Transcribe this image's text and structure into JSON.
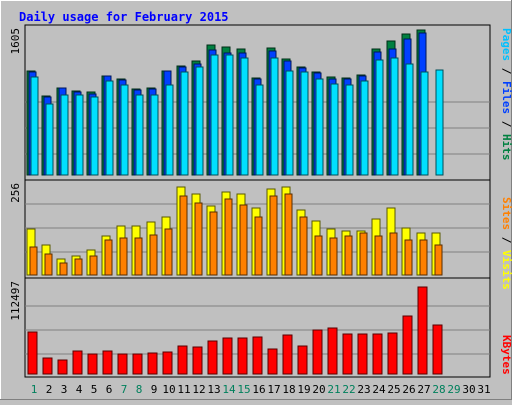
{
  "chart_data": [
    {
      "type": "bar",
      "title": "Daily usage for February 2015",
      "categories": [
        "1",
        "2",
        "3",
        "4",
        "5",
        "6",
        "7",
        "8",
        "9",
        "10",
        "11",
        "12",
        "13",
        "14",
        "15",
        "16",
        "17",
        "18",
        "19",
        "20",
        "21",
        "22",
        "23",
        "24",
        "25",
        "26",
        "27",
        "28",
        "29",
        "30",
        "31"
      ],
      "weekend_days": [
        "1",
        "7",
        "8",
        "14",
        "15",
        "21",
        "22",
        "28",
        "29"
      ],
      "ymax_label": "1605",
      "ylim": [
        0,
        1605
      ],
      "grid": true,
      "series": [
        {
          "name": "Hits",
          "color": "#008040",
          "values": [
            1150,
            870,
            960,
            930,
            920,
            1100,
            1060,
            950,
            960,
            1155,
            1205,
            1260,
            1435,
            1420,
            1395,
            1075,
            1410,
            1285,
            1195,
            1140,
            1080,
            1070,
            1110,
            1400,
            1480,
            1560,
            1605,
            0,
            0,
            0,
            0
          ]
        },
        {
          "name": "Files",
          "color": "#0040FF",
          "values": [
            1140,
            860,
            960,
            920,
            900,
            1095,
            1055,
            945,
            950,
            1150,
            1195,
            1230,
            1380,
            1355,
            1345,
            1060,
            1370,
            1265,
            1185,
            1130,
            1065,
            1060,
            1095,
            1360,
            1395,
            1500,
            1570,
            0,
            0,
            0,
            0
          ]
        },
        {
          "name": "Pages",
          "color": "#00E0FF",
          "values": [
            1090,
            790,
            880,
            880,
            860,
            1040,
            1000,
            880,
            890,
            1000,
            1140,
            1200,
            1330,
            1330,
            1290,
            1000,
            1300,
            1150,
            1140,
            1060,
            1010,
            1000,
            1040,
            1270,
            1290,
            1225,
            1140,
            1160,
            0,
            0,
            0
          ]
        }
      ],
      "legend": [
        {
          "text": "Pages",
          "color": "#00C0FF"
        },
        {
          "text": " / ",
          "color": "#000000"
        },
        {
          "text": "Files",
          "color": "#0040FF"
        },
        {
          "text": " / ",
          "color": "#000000"
        },
        {
          "text": "Hits",
          "color": "#008040"
        }
      ]
    },
    {
      "type": "bar",
      "ymax_label": "256",
      "ylim": [
        0,
        256
      ],
      "grid": true,
      "series": [
        {
          "name": "Visits",
          "color": "#FFFF00",
          "values": [
            130,
            85,
            45,
            55,
            70,
            110,
            140,
            140,
            150,
            165,
            250,
            230,
            195,
            235,
            230,
            190,
            245,
            250,
            185,
            155,
            130,
            125,
            125,
            160,
            190,
            135,
            120,
            120,
            0,
            0,
            0
          ]
        },
        {
          "name": "Sites",
          "color": "#FF8000",
          "values": [
            80,
            60,
            35,
            45,
            55,
            100,
            105,
            105,
            115,
            130,
            225,
            205,
            180,
            215,
            200,
            165,
            225,
            230,
            165,
            110,
            105,
            110,
            120,
            110,
            120,
            100,
            100,
            85,
            0,
            0,
            0
          ]
        }
      ],
      "legend": [
        {
          "text": "Sites",
          "color": "#FF8000"
        },
        {
          "text": " / ",
          "color": "#000000"
        },
        {
          "text": "Visits",
          "color": "#FFFF00"
        }
      ]
    },
    {
      "type": "bar",
      "ymax_label": "112497",
      "ylim": [
        0,
        112497
      ],
      "grid": true,
      "series": [
        {
          "name": "KBytes",
          "color": "#FF0000",
          "values": [
            52000,
            20000,
            17000,
            28000,
            25000,
            29000,
            25000,
            25000,
            26000,
            27000,
            35000,
            33000,
            41000,
            44000,
            45000,
            46000,
            31000,
            48000,
            34000,
            55000,
            57000,
            50000,
            49000,
            50000,
            51000,
            72000,
            107000,
            61000,
            0,
            0,
            0
          ]
        }
      ],
      "legend": [
        {
          "text": "KBytes",
          "color": "#FF0000"
        }
      ]
    }
  ]
}
